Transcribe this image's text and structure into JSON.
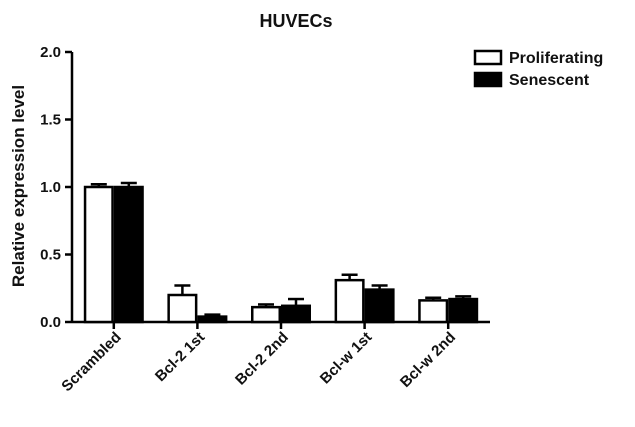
{
  "chart_data": {
    "type": "bar",
    "title": "HUVECs",
    "xlabel": "",
    "ylabel": "Relative expression level",
    "ylim": [
      0,
      2.0
    ],
    "yticks": [
      "0.0",
      "0.5",
      "1.0",
      "1.5",
      "2.0"
    ],
    "categories": [
      "Scrambled",
      "Bcl-2 1st",
      "Bcl-2 2nd",
      "Bcl-w 1st",
      "Bcl-w 2nd"
    ],
    "series": [
      {
        "name": "Proliferating",
        "color": "#ffffff",
        "values": [
          1.0,
          0.2,
          0.11,
          0.31,
          0.16
        ],
        "errors": [
          0.02,
          0.07,
          0.02,
          0.04,
          0.02
        ]
      },
      {
        "name": "Senescent",
        "color": "#000000",
        "values": [
          1.0,
          0.04,
          0.12,
          0.24,
          0.17
        ],
        "errors": [
          0.03,
          0.015,
          0.05,
          0.03,
          0.02
        ]
      }
    ],
    "legend_position": "top-right",
    "grid": false
  }
}
